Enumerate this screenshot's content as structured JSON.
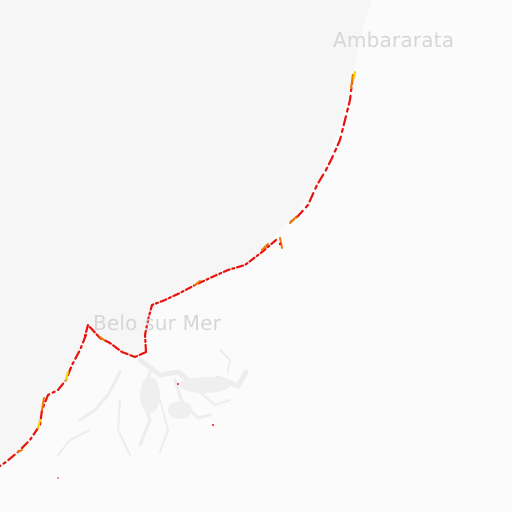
{
  "map": {
    "places": [
      {
        "name": "Ambararata"
      },
      {
        "name": "Belo sur Mer"
      }
    ],
    "colors": {
      "background": "#f6f6f6",
      "land": "#fbfbfb",
      "water_channels": "#eeeeee",
      "coast_high": "#e8120c",
      "coast_mid": "#f07a00",
      "coast_low": "#f3d300"
    }
  }
}
